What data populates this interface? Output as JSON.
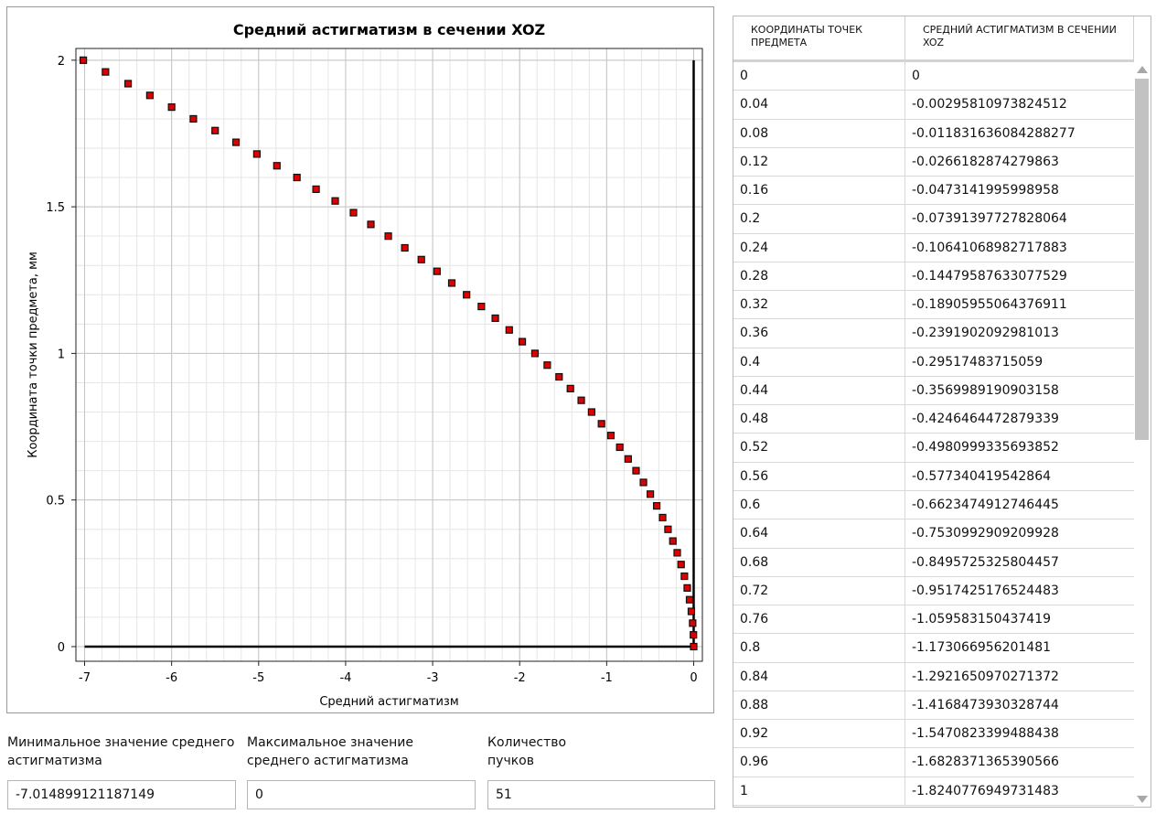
{
  "chart_data": {
    "type": "scatter",
    "title": "Средний астигматизм в сечении XOZ",
    "xlabel": "Средний астигматизм",
    "ylabel": "Координата точки предмета, мм",
    "xlim": [
      -7.1,
      0.1
    ],
    "ylim": [
      -0.05,
      2.04
    ],
    "xticks": [
      -7,
      -6,
      -5,
      -4,
      -3,
      -2,
      -1,
      0
    ],
    "xtick_labels": [
      "-7",
      "-6",
      "-5",
      "-4",
      "-3",
      "-2",
      "-1",
      "0"
    ],
    "yticks": [
      0,
      0.5,
      1,
      1.5,
      2
    ],
    "ytick_labels": [
      "0",
      "0.5",
      "1",
      "1.5",
      "2"
    ],
    "grid": true,
    "marker_color": "#e00000",
    "marker_edge": "#111111",
    "points": [
      {
        "x": 0,
        "y": 0
      },
      {
        "x": -0.00295810973824512,
        "y": 0.04
      },
      {
        "x": -0.011831636084288277,
        "y": 0.08
      },
      {
        "x": -0.0266182874279863,
        "y": 0.12
      },
      {
        "x": -0.0473141995998958,
        "y": 0.16
      },
      {
        "x": -0.07391397727828064,
        "y": 0.2
      },
      {
        "x": -0.10641068982717883,
        "y": 0.24
      },
      {
        "x": -0.14479587633077529,
        "y": 0.28
      },
      {
        "x": -0.18905955064376911,
        "y": 0.32
      },
      {
        "x": -0.2391902092981013,
        "y": 0.36
      },
      {
        "x": -0.29517483715059,
        "y": 0.4
      },
      {
        "x": -0.3569989190903158,
        "y": 0.44
      },
      {
        "x": -0.4246464472879339,
        "y": 0.48
      },
      {
        "x": -0.4980999335693852,
        "y": 0.52
      },
      {
        "x": -0.577340419542864,
        "y": 0.56
      },
      {
        "x": -0.6623474912746445,
        "y": 0.6
      },
      {
        "x": -0.7530992909209928,
        "y": 0.64
      },
      {
        "x": -0.8495725325804457,
        "y": 0.68
      },
      {
        "x": -0.9517425176524483,
        "y": 0.72
      },
      {
        "x": -1.059583150437419,
        "y": 0.76
      },
      {
        "x": -1.173066956201481,
        "y": 0.8
      },
      {
        "x": -1.2921650970271372,
        "y": 0.84
      },
      {
        "x": -1.4168473930328744,
        "y": 0.88
      },
      {
        "x": -1.5470823399488438,
        "y": 0.92
      },
      {
        "x": -1.6828371365390566,
        "y": 0.96
      },
      {
        "x": -1.8240776949731483,
        "y": 1.0
      },
      {
        "x": -1.97,
        "y": 1.04
      },
      {
        "x": -2.12,
        "y": 1.08
      },
      {
        "x": -2.28,
        "y": 1.12
      },
      {
        "x": -2.44,
        "y": 1.16
      },
      {
        "x": -2.61,
        "y": 1.2
      },
      {
        "x": -2.78,
        "y": 1.24
      },
      {
        "x": -2.95,
        "y": 1.28
      },
      {
        "x": -3.13,
        "y": 1.32
      },
      {
        "x": -3.32,
        "y": 1.36
      },
      {
        "x": -3.51,
        "y": 1.4
      },
      {
        "x": -3.71,
        "y": 1.44
      },
      {
        "x": -3.91,
        "y": 1.48
      },
      {
        "x": -4.12,
        "y": 1.52
      },
      {
        "x": -4.34,
        "y": 1.56
      },
      {
        "x": -4.56,
        "y": 1.6
      },
      {
        "x": -4.79,
        "y": 1.64
      },
      {
        "x": -5.02,
        "y": 1.68
      },
      {
        "x": -5.26,
        "y": 1.72
      },
      {
        "x": -5.5,
        "y": 1.76
      },
      {
        "x": -5.75,
        "y": 1.8
      },
      {
        "x": -6.0,
        "y": 1.84
      },
      {
        "x": -6.25,
        "y": 1.88
      },
      {
        "x": -6.5,
        "y": 1.92
      },
      {
        "x": -6.76,
        "y": 1.96
      },
      {
        "x": -7.014899121187149,
        "y": 2.0
      }
    ]
  },
  "fields": {
    "min": {
      "label": "Минимальное значение среднего астигматизма",
      "value": "-7.014899121187149"
    },
    "max": {
      "label": "Максимальное значение среднего астигматизма",
      "value": "0"
    },
    "count": {
      "label": "Количество пучков",
      "value": "51"
    }
  },
  "table": {
    "headers": [
      "Координаты точек предмета",
      "Средний астигматизм в сечении XOZ"
    ],
    "rows": [
      [
        "0",
        "0"
      ],
      [
        "0.04",
        "-0.00295810973824512"
      ],
      [
        "0.08",
        "-0.011831636084288277"
      ],
      [
        "0.12",
        "-0.0266182874279863"
      ],
      [
        "0.16",
        "-0.0473141995998958"
      ],
      [
        "0.2",
        "-0.07391397727828064"
      ],
      [
        "0.24",
        "-0.10641068982717883"
      ],
      [
        "0.28",
        "-0.14479587633077529"
      ],
      [
        "0.32",
        "-0.18905955064376911"
      ],
      [
        "0.36",
        "-0.2391902092981013"
      ],
      [
        "0.4",
        "-0.29517483715059"
      ],
      [
        "0.44",
        "-0.3569989190903158"
      ],
      [
        "0.48",
        "-0.4246464472879339"
      ],
      [
        "0.52",
        "-0.4980999335693852"
      ],
      [
        "0.56",
        "-0.577340419542864"
      ],
      [
        "0.6",
        "-0.6623474912746445"
      ],
      [
        "0.64",
        "-0.7530992909209928"
      ],
      [
        "0.68",
        "-0.8495725325804457"
      ],
      [
        "0.72",
        "-0.9517425176524483"
      ],
      [
        "0.76",
        "-1.059583150437419"
      ],
      [
        "0.8",
        "-1.173066956201481"
      ],
      [
        "0.84",
        "-1.2921650970271372"
      ],
      [
        "0.88",
        "-1.4168473930328744"
      ],
      [
        "0.92",
        "-1.5470823399488438"
      ],
      [
        "0.96",
        "-1.6828371365390566"
      ],
      [
        "1",
        "-1.8240776949731483"
      ]
    ]
  }
}
